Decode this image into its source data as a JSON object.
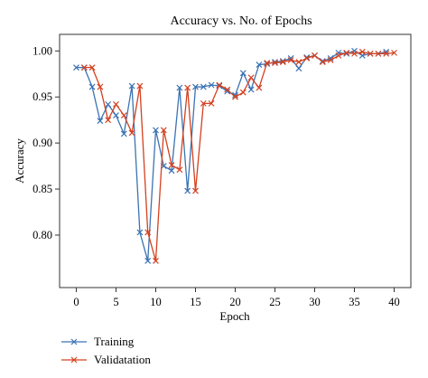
{
  "chart_data": {
    "type": "line",
    "title": "Accuracy vs. No. of Epochs",
    "xlabel": "Epoch",
    "ylabel": "Accuracy",
    "xlim": [
      -2.1,
      42.1
    ],
    "ylim": [
      0.743,
      1.018
    ],
    "x_ticks": [
      0,
      5,
      10,
      15,
      20,
      25,
      30,
      35,
      40
    ],
    "y_ticks": [
      0.8,
      0.85,
      0.9,
      0.95,
      1.0
    ],
    "y_tick_labels": [
      "0.80",
      "0.85",
      "0.90",
      "0.95",
      "1.00"
    ],
    "grid": false,
    "legend_position": "bottom-left, outside the axes",
    "marker": "x",
    "series": [
      {
        "name": "Training",
        "color": "#3b73b4",
        "x": [
          0,
          1,
          2,
          3,
          4,
          5,
          6,
          7,
          8,
          9,
          10,
          11,
          12,
          13,
          14,
          15,
          16,
          17,
          18,
          19,
          20,
          21,
          22,
          23,
          24,
          25,
          26,
          27,
          28,
          29,
          30,
          31,
          32,
          33,
          34,
          35,
          36,
          37,
          38,
          39
        ],
        "y": [
          0.982,
          0.982,
          0.961,
          0.924,
          0.942,
          0.93,
          0.91,
          0.962,
          0.803,
          0.772,
          0.914,
          0.875,
          0.87,
          0.96,
          0.848,
          0.961,
          0.961,
          0.963,
          0.962,
          0.956,
          0.952,
          0.976,
          0.958,
          0.985,
          0.986,
          0.988,
          0.989,
          0.992,
          0.981,
          0.993,
          0.995,
          0.989,
          0.992,
          0.998,
          0.997,
          1.0,
          0.995,
          0.997,
          0.997,
          0.999
        ]
      },
      {
        "name": "Validatation",
        "color": "#d5401f",
        "x": [
          1,
          2,
          3,
          4,
          5,
          6,
          7,
          8,
          9,
          10,
          11,
          12,
          13,
          14,
          15,
          16,
          17,
          18,
          19,
          20,
          21,
          22,
          23,
          24,
          25,
          26,
          27,
          28,
          29,
          30,
          31,
          32,
          33,
          34,
          35,
          36,
          37,
          38,
          39,
          40
        ],
        "y": [
          0.982,
          0.982,
          0.961,
          0.925,
          0.942,
          0.93,
          0.911,
          0.962,
          0.803,
          0.772,
          0.914,
          0.876,
          0.871,
          0.96,
          0.848,
          0.943,
          0.943,
          0.963,
          0.958,
          0.95,
          0.955,
          0.971,
          0.96,
          0.987,
          0.987,
          0.988,
          0.99,
          0.988,
          0.992,
          0.995,
          0.988,
          0.99,
          0.995,
          0.998,
          0.997,
          0.999,
          0.997,
          0.997,
          0.997,
          0.998
        ]
      }
    ]
  }
}
